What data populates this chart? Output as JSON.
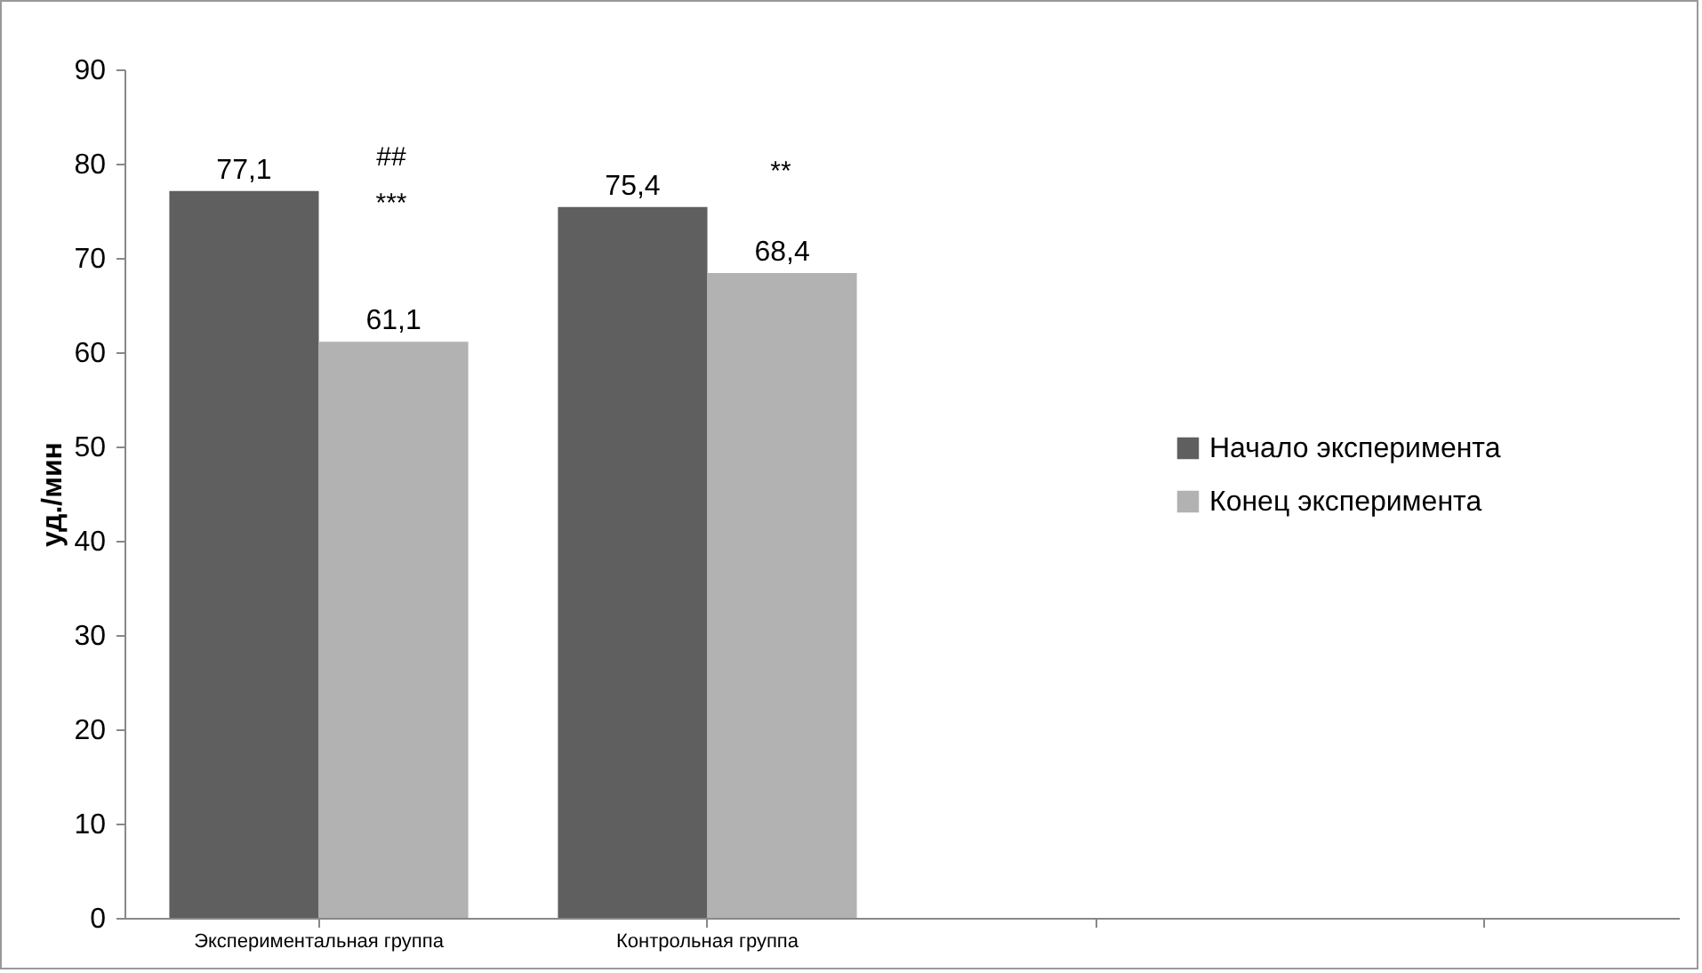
{
  "chart_data": {
    "type": "bar",
    "ylabel": "уд./мин",
    "categories": [
      "Экспериментальная группа",
      "Контрольная группа",
      null,
      null
    ],
    "series": [
      {
        "name": "Начало эксперимента",
        "color": "#5f5f5f",
        "values": [
          77.1,
          75.4,
          null,
          null
        ],
        "value_labels": [
          "77,1",
          "75,4",
          null,
          null
        ]
      },
      {
        "name": "Конец эксперимента",
        "color": "#b2b2b2",
        "values": [
          61.1,
          68.4,
          null,
          null
        ],
        "value_labels": [
          "61,1",
          "68,4",
          null,
          null
        ]
      }
    ],
    "ylim": [
      0,
      90
    ],
    "yticks": [
      0,
      10,
      20,
      30,
      40,
      50,
      60,
      70,
      80,
      90
    ],
    "legend": "right",
    "grid": false,
    "annotations": [
      "##",
      "***",
      "**"
    ]
  }
}
